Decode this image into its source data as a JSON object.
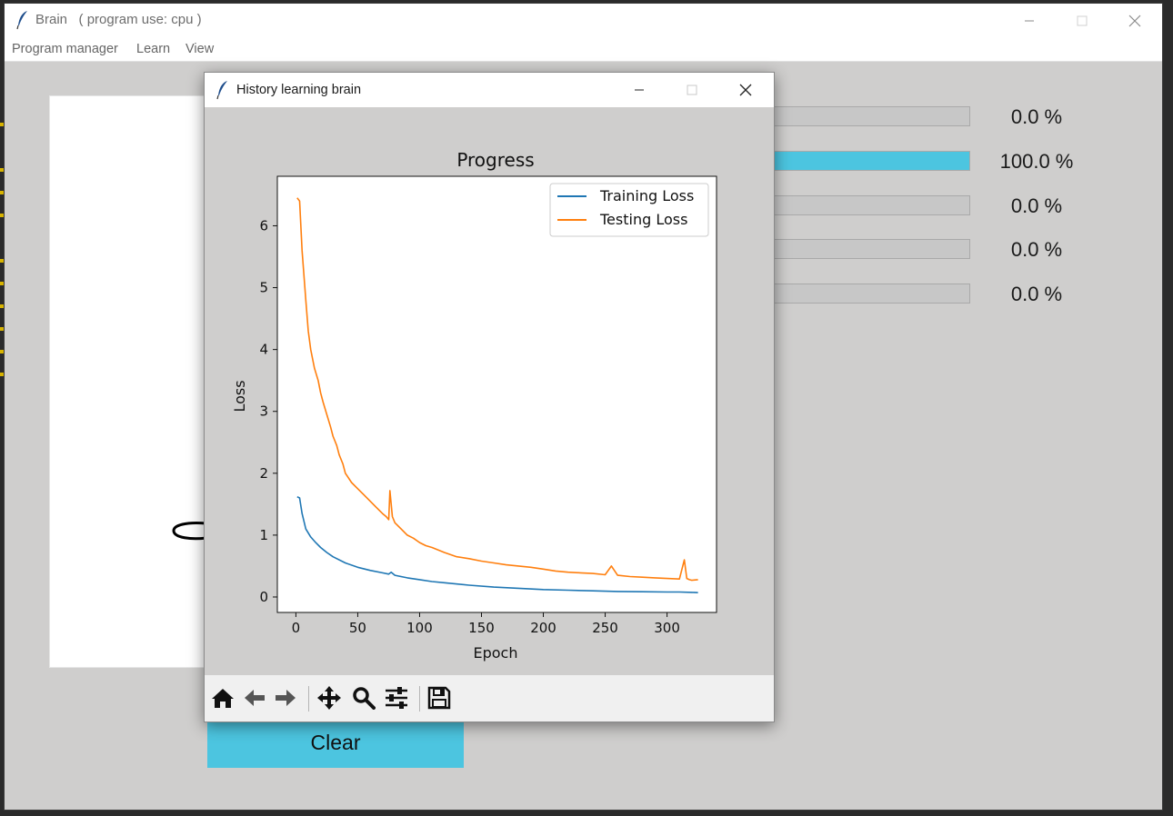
{
  "main_window": {
    "app_name": "Brain",
    "subtitle": "( program use: cpu )",
    "menu": [
      "Program manager",
      "Learn",
      "View"
    ],
    "clear_label": "Clear",
    "progress": [
      {
        "value": 0.0,
        "label": "0.0 %"
      },
      {
        "value": 100.0,
        "label": "100.0 %"
      },
      {
        "value": 0.0,
        "label": "0.0 %"
      },
      {
        "value": 0.0,
        "label": "0.0 %"
      },
      {
        "value": 0.0,
        "label": "0.0 %"
      }
    ],
    "accent_color": "#4cc5e0"
  },
  "history_window": {
    "title": "History learning brain",
    "toolbar_icons": [
      "home-icon",
      "back-arrow-icon",
      "forward-arrow-icon",
      "pan-icon",
      "zoom-icon",
      "configure-subplots-icon",
      "save-icon"
    ]
  },
  "chart_data": {
    "type": "line",
    "title": "Progress",
    "xlabel": "Epoch",
    "ylabel": "Loss",
    "xlim": [
      -15,
      340
    ],
    "ylim": [
      -0.25,
      6.8
    ],
    "xticks": [
      0,
      50,
      100,
      150,
      200,
      250,
      300
    ],
    "yticks": [
      0,
      1,
      2,
      3,
      4,
      5,
      6
    ],
    "legend_position": "top-right",
    "series": [
      {
        "name": "Training Loss",
        "color": "#1f77b4",
        "x": [
          1,
          3,
          5,
          8,
          12,
          16,
          20,
          25,
          30,
          40,
          50,
          60,
          70,
          75,
          77,
          80,
          90,
          100,
          110,
          120,
          140,
          160,
          180,
          200,
          220,
          240,
          260,
          280,
          300,
          310,
          320,
          325
        ],
        "y": [
          1.62,
          1.6,
          1.35,
          1.1,
          0.97,
          0.88,
          0.8,
          0.72,
          0.65,
          0.55,
          0.48,
          0.43,
          0.39,
          0.37,
          0.4,
          0.35,
          0.31,
          0.28,
          0.25,
          0.23,
          0.19,
          0.16,
          0.14,
          0.12,
          0.11,
          0.1,
          0.09,
          0.085,
          0.08,
          0.08,
          0.075,
          0.07
        ]
      },
      {
        "name": "Testing Loss",
        "color": "#ff7f0e",
        "x": [
          1,
          3,
          5,
          8,
          10,
          12,
          15,
          18,
          20,
          22,
          25,
          28,
          30,
          33,
          35,
          38,
          40,
          45,
          50,
          55,
          60,
          65,
          70,
          73,
          75,
          76,
          78,
          80,
          85,
          90,
          95,
          100,
          105,
          110,
          120,
          130,
          140,
          150,
          160,
          170,
          180,
          190,
          200,
          210,
          220,
          230,
          240,
          250,
          255,
          260,
          270,
          280,
          290,
          300,
          310,
          314,
          316,
          318,
          320,
          325
        ],
        "y": [
          6.45,
          6.4,
          5.6,
          4.8,
          4.3,
          4.0,
          3.7,
          3.5,
          3.3,
          3.15,
          2.95,
          2.75,
          2.6,
          2.45,
          2.3,
          2.15,
          2.0,
          1.85,
          1.75,
          1.65,
          1.55,
          1.45,
          1.35,
          1.3,
          1.25,
          1.72,
          1.3,
          1.2,
          1.1,
          1.0,
          0.95,
          0.88,
          0.83,
          0.8,
          0.72,
          0.65,
          0.62,
          0.58,
          0.55,
          0.52,
          0.5,
          0.48,
          0.45,
          0.42,
          0.4,
          0.39,
          0.38,
          0.36,
          0.5,
          0.35,
          0.33,
          0.32,
          0.31,
          0.3,
          0.29,
          0.6,
          0.3,
          0.28,
          0.27,
          0.28
        ]
      }
    ]
  }
}
